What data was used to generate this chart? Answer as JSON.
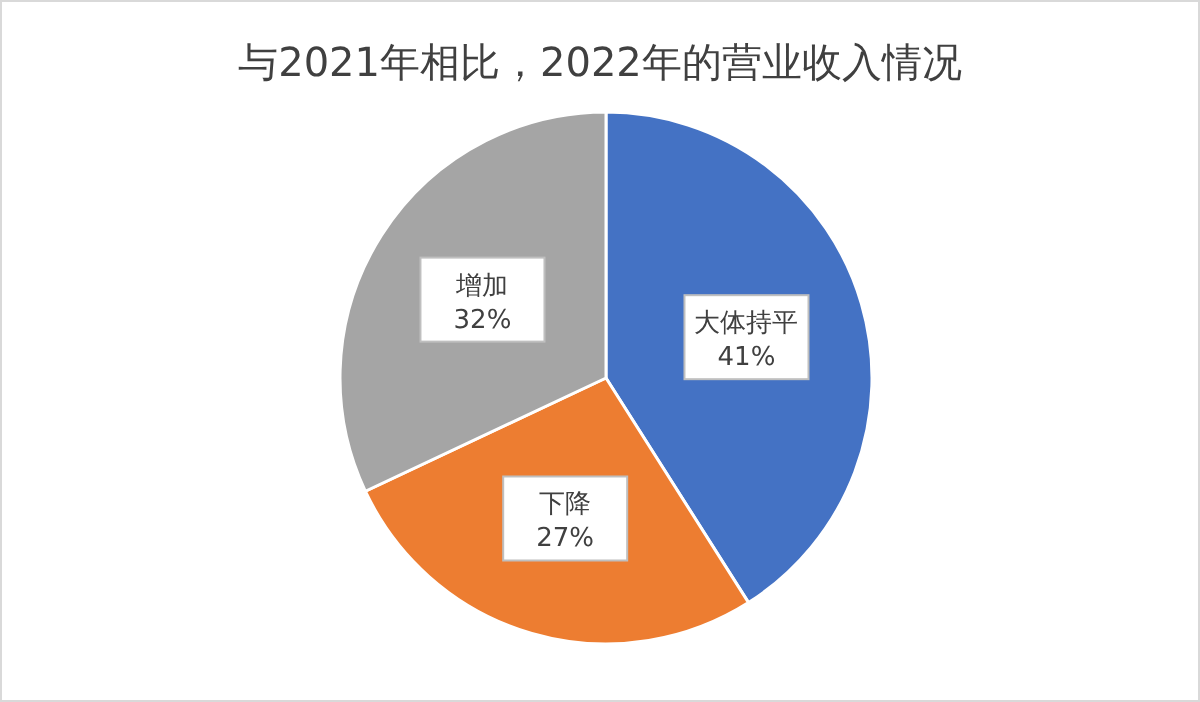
{
  "chart_data": {
    "type": "pie",
    "title": "与2021年相比，2022年的营业收入情况",
    "categories": [
      "大体持平",
      "下降",
      "增加"
    ],
    "values": [
      41,
      27,
      32
    ],
    "value_labels": [
      "41%",
      "27%",
      "32%"
    ],
    "colors": [
      "#4472c4",
      "#ed7d31",
      "#a5a5a5"
    ]
  }
}
